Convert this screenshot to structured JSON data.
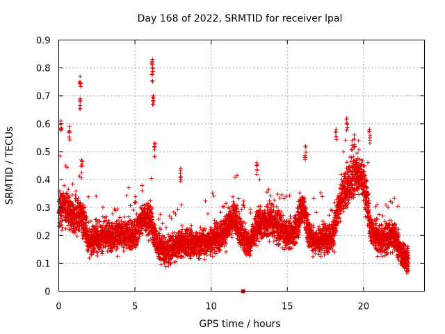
{
  "chart_data": {
    "type": "scatter",
    "title": "Day 168 of 2022, SRMTID for receiver lpal",
    "xlabel": "GPS time / hours",
    "ylabel": "SRMTID / TECUs",
    "xlim": [
      0,
      24
    ],
    "ylim": [
      0,
      0.9
    ],
    "xticks": [
      0,
      5,
      10,
      15,
      20
    ],
    "xtick_labels": [
      "0",
      "5",
      "10",
      "15",
      "20"
    ],
    "yticks": [
      0,
      0.1,
      0.2,
      0.3,
      0.4,
      0.5,
      0.6,
      0.7,
      0.8,
      0.9
    ],
    "ytick_labels": [
      "0",
      "0.1",
      "0.2",
      "0.3",
      "0.4",
      "0.5",
      "0.6",
      "0.7",
      "0.8",
      "0.9"
    ],
    "grid": true,
    "marker": "+",
    "color": "#e00000",
    "outlier_point": {
      "x": 12.1,
      "y": 0.0
    },
    "trend": {
      "hours": [
        0,
        0.5,
        1,
        1.5,
        2,
        3,
        4,
        5,
        5.5,
        6,
        6.5,
        7,
        8,
        9,
        10,
        11,
        11.5,
        12,
        12.5,
        13,
        14,
        15,
        15.5,
        16,
        16.5,
        17,
        18,
        18.5,
        19,
        19.5,
        20,
        20.5,
        21,
        22,
        22.5,
        23
      ],
      "mean_tecu": [
        0.3,
        0.3,
        0.26,
        0.27,
        0.18,
        0.2,
        0.2,
        0.2,
        0.26,
        0.26,
        0.16,
        0.14,
        0.17,
        0.17,
        0.18,
        0.22,
        0.27,
        0.2,
        0.16,
        0.24,
        0.25,
        0.2,
        0.21,
        0.31,
        0.19,
        0.18,
        0.2,
        0.33,
        0.38,
        0.42,
        0.4,
        0.22,
        0.18,
        0.2,
        0.13,
        0.1
      ]
    },
    "spikes": [
      {
        "x": 0.15,
        "y": 0.61
      },
      {
        "x": 0.7,
        "y": 0.59
      },
      {
        "x": 1.4,
        "y": 0.77
      },
      {
        "x": 1.4,
        "y": 0.69
      },
      {
        "x": 1.5,
        "y": 0.47
      },
      {
        "x": 6.15,
        "y": 0.83
      },
      {
        "x": 6.15,
        "y": 0.8
      },
      {
        "x": 6.2,
        "y": 0.7
      },
      {
        "x": 6.3,
        "y": 0.53
      },
      {
        "x": 8.0,
        "y": 0.44
      },
      {
        "x": 13.0,
        "y": 0.46
      },
      {
        "x": 16.2,
        "y": 0.52
      },
      {
        "x": 18.2,
        "y": 0.58
      },
      {
        "x": 18.9,
        "y": 0.62
      },
      {
        "x": 19.4,
        "y": 0.56
      },
      {
        "x": 20.4,
        "y": 0.58
      }
    ]
  }
}
